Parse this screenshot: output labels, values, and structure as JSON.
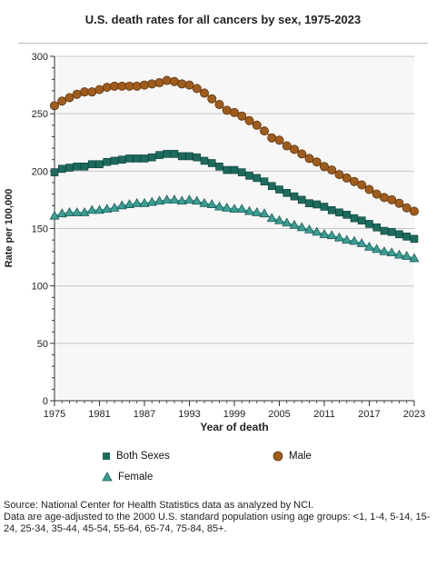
{
  "chart_data": {
    "type": "line",
    "title": "U.S. death rates for all cancers by sex, 1975-2023",
    "xlabel": "Year of death",
    "ylabel": "Rate per 100,000",
    "xlim": [
      1975,
      2023
    ],
    "ylim": [
      0,
      300
    ],
    "x_ticks": [
      "1975",
      "1981",
      "1987",
      "1993",
      "1999",
      "2005",
      "2011",
      "2017",
      "2023"
    ],
    "y_ticks": [
      "0",
      "50",
      "100",
      "150",
      "200",
      "250",
      "300"
    ],
    "grid": true,
    "legend_position": "bottom",
    "x": [
      1975,
      1976,
      1977,
      1978,
      1979,
      1980,
      1981,
      1982,
      1983,
      1984,
      1985,
      1986,
      1987,
      1988,
      1989,
      1990,
      1991,
      1992,
      1993,
      1994,
      1995,
      1996,
      1997,
      1998,
      1999,
      2000,
      2001,
      2002,
      2003,
      2004,
      2005,
      2006,
      2007,
      2008,
      2009,
      2010,
      2011,
      2012,
      2013,
      2014,
      2015,
      2016,
      2017,
      2018,
      2019,
      2020,
      2021,
      2022,
      2023
    ],
    "series": [
      {
        "name": "Both Sexes",
        "marker": "square",
        "color": "#1d6b5e",
        "values": [
          199,
          202,
          203,
          204,
          204,
          206,
          206,
          208,
          209,
          210,
          211,
          211,
          211,
          212,
          214,
          215,
          215,
          213,
          213,
          212,
          209,
          207,
          204,
          201,
          201,
          199,
          196,
          194,
          191,
          187,
          184,
          181,
          178,
          175,
          172,
          171,
          169,
          166,
          164,
          162,
          159,
          157,
          154,
          151,
          148,
          147,
          145,
          143,
          141
        ]
      },
      {
        "name": "Male",
        "marker": "circle",
        "color": "#a05c1c",
        "values": [
          257,
          261,
          264,
          267,
          269,
          269,
          271,
          273,
          274,
          274,
          274,
          274,
          275,
          276,
          277,
          279,
          278,
          276,
          275,
          272,
          268,
          263,
          258,
          253,
          251,
          248,
          244,
          240,
          235,
          229,
          227,
          222,
          219,
          215,
          211,
          208,
          204,
          201,
          197,
          194,
          191,
          188,
          184,
          180,
          177,
          175,
          172,
          168,
          165
        ]
      },
      {
        "name": "Female",
        "marker": "triangle",
        "color": "#3aa096",
        "values": [
          161,
          163,
          164,
          164,
          164,
          166,
          166,
          167,
          168,
          170,
          171,
          172,
          172,
          173,
          174,
          175,
          175,
          174,
          175,
          174,
          172,
          171,
          169,
          168,
          167,
          167,
          165,
          164,
          163,
          159,
          157,
          155,
          153,
          151,
          149,
          147,
          145,
          144,
          142,
          140,
          139,
          137,
          134,
          132,
          130,
          129,
          127,
          126,
          124
        ]
      }
    ]
  },
  "source_line_1": "Source: National Center for Health Statistics data as analyzed by NCI.",
  "source_line_2": "Data are age-adjusted to the 2000 U.S. standard population using age groups: <1, 1-4, 5-14, 15-24, 25-34, 35-44, 45-54, 55-64, 65-74, 75-84, 85+.",
  "colors": {
    "plot_bg": "#f7f7f7",
    "grid": "#c4c4c4",
    "axis": "#333333"
  }
}
